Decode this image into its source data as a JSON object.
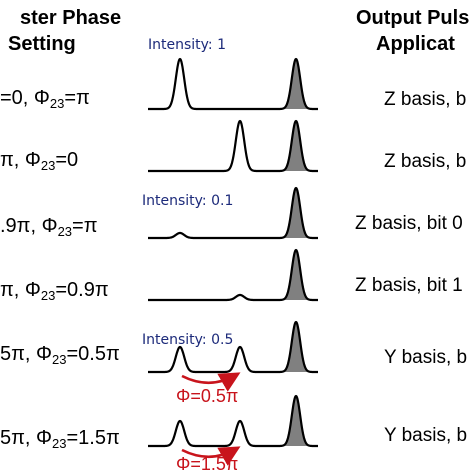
{
  "headers": {
    "left_line1": "ster Phase",
    "left_line2": "Setting",
    "right_line1": "Output Puls",
    "right_line2": "Applicat"
  },
  "rows": [
    {
      "phase_a": "=0, Φ",
      "phase_sub": "23",
      "phase_b": "=π",
      "output": "Z basis, b",
      "intensity": "Intensity: 1",
      "phi_label": "",
      "peaks": [
        1,
        0,
        1
      ],
      "arrow": false
    },
    {
      "phase_a": "π, Φ",
      "phase_sub": "23",
      "phase_b": "=0",
      "output": "Z basis, b",
      "intensity": "",
      "phi_label": "",
      "peaks": [
        0,
        1,
        1
      ],
      "arrow": false
    },
    {
      "phase_a": ".9π, Φ",
      "phase_sub": "23",
      "phase_b": "=π",
      "output": "Z basis, bit 0",
      "intensity": "Intensity: 0.1",
      "phi_label": "",
      "peaks": [
        0.1,
        0,
        1
      ],
      "arrow": false
    },
    {
      "phase_a": "π, Φ",
      "phase_sub": "23",
      "phase_b": "=0.9π",
      "output": "Z basis, bit 1",
      "intensity": "",
      "phi_label": "",
      "peaks": [
        0,
        0.1,
        1
      ],
      "arrow": false
    },
    {
      "phase_a": "5π, Φ",
      "phase_sub": "23",
      "phase_b": "=0.5π",
      "output": "Y basis, b",
      "intensity": "Intensity: 0.5",
      "phi_label": "Φ=0.5π",
      "peaks": [
        0.5,
        0.5,
        1
      ],
      "arrow": true
    },
    {
      "phase_a": "5π, Φ",
      "phase_sub": "23",
      "phase_b": "=1.5π",
      "output": "Y basis, b",
      "intensity": "",
      "phi_label": "Φ=1.5π",
      "peaks": [
        0.5,
        0.5,
        1
      ],
      "arrow": true
    }
  ],
  "colors": {
    "intensity_text": "#1c2a7a",
    "phase_arrow": "#c8141c",
    "reference_pulse_fill": "#808080"
  }
}
